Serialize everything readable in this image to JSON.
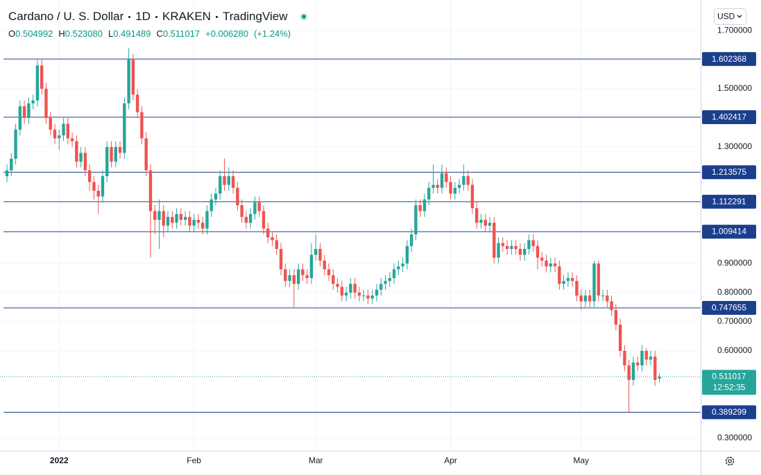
{
  "header": {
    "symbol": "Cardano / U. S. Dollar",
    "interval": "1D",
    "exchange": "KRAKEN",
    "source": "TradingView",
    "currency": "USD"
  },
  "legend": {
    "open_label": "O",
    "open": "0.504992",
    "high_label": "H",
    "high": "0.523080",
    "low_label": "L",
    "low": "0.491489",
    "close_label": "C",
    "close": "0.511017",
    "change": "+0.006280",
    "change_pct": "(+1.24%)"
  },
  "chart_data": {
    "type": "candlestick",
    "categories": [
      null,
      null,
      null,
      null,
      null,
      null,
      null,
      null,
      null,
      null,
      null,
      null,
      "2022",
      null,
      null,
      null,
      null,
      null,
      null,
      null,
      null,
      null,
      null,
      null,
      null,
      null,
      null,
      null,
      null,
      null,
      null,
      null,
      null,
      null,
      null,
      null,
      null,
      null,
      null,
      null,
      null,
      null,
      null,
      "Feb",
      null,
      null,
      null,
      null,
      null,
      null,
      null,
      null,
      null,
      null,
      null,
      null,
      null,
      null,
      null,
      null,
      null,
      null,
      null,
      null,
      null,
      null,
      null,
      null,
      null,
      null,
      null,
      "Mar",
      null,
      null,
      null,
      null,
      null,
      null,
      null,
      null,
      null,
      null,
      null,
      null,
      null,
      null,
      null,
      null,
      null,
      null,
      null,
      null,
      null,
      null,
      null,
      null,
      null,
      null,
      null,
      null,
      null,
      null,
      "Apr",
      null,
      null,
      null,
      null,
      null,
      null,
      null,
      null,
      null,
      null,
      null,
      null,
      null,
      null,
      null,
      null,
      null,
      null,
      null,
      null,
      null,
      null,
      null,
      null,
      null,
      null,
      null,
      null,
      null,
      "May",
      null,
      null,
      null,
      null,
      null,
      null,
      null,
      null,
      null,
      null,
      null,
      null,
      null,
      null,
      null,
      null,
      null,
      null
    ],
    "open": [
      1.2,
      1.22,
      1.26,
      1.36,
      1.44,
      1.4,
      1.45,
      1.46,
      1.58,
      1.5,
      1.4,
      1.36,
      1.33,
      1.34,
      1.38,
      1.33,
      1.32,
      1.25,
      1.28,
      1.22,
      1.18,
      1.15,
      1.13,
      1.2,
      1.3,
      1.25,
      1.3,
      1.28,
      1.45,
      1.6,
      1.48,
      1.42,
      1.33,
      1.22,
      1.08,
      1.05,
      1.08,
      1.03,
      1.06,
      1.04,
      1.07,
      1.05,
      1.06,
      1.03,
      1.05,
      1.04,
      1.02,
      1.08,
      1.12,
      1.14,
      1.2,
      1.17,
      1.2,
      1.16,
      1.1,
      1.06,
      1.04,
      1.07,
      1.11,
      1.08,
      1.02,
      0.99,
      0.98,
      0.95,
      0.88,
      0.84,
      0.86,
      0.83,
      0.88,
      0.86,
      0.85,
      0.93,
      0.95,
      0.91,
      0.88,
      0.86,
      0.83,
      0.82,
      0.79,
      0.8,
      0.83,
      0.8,
      0.79,
      0.79,
      0.78,
      0.79,
      0.81,
      0.83,
      0.84,
      0.85,
      0.88,
      0.89,
      0.9,
      0.96,
      1.0,
      1.1,
      1.08,
      1.12,
      1.16,
      1.17,
      1.16,
      1.21,
      1.18,
      1.14,
      1.16,
      1.17,
      1.2,
      1.17,
      1.09,
      1.04,
      1.05,
      1.03,
      1.04,
      0.92,
      0.97,
      0.96,
      0.95,
      0.96,
      0.95,
      0.93,
      0.95,
      0.98,
      0.96,
      0.92,
      0.91,
      0.89,
      0.9,
      0.89,
      0.83,
      0.84,
      0.85,
      0.84,
      0.79,
      0.77,
      0.79,
      0.77,
      0.9,
      0.79,
      0.79,
      0.77,
      0.74,
      0.69,
      0.6,
      0.55,
      0.5,
      0.56,
      0.55,
      0.6,
      0.57,
      0.58,
      0.504992
    ],
    "high": [
      1.24,
      1.28,
      1.38,
      1.46,
      1.46,
      1.47,
      1.48,
      1.6,
      1.6,
      1.52,
      1.42,
      1.38,
      1.36,
      1.4,
      1.4,
      1.35,
      1.34,
      1.3,
      1.3,
      1.24,
      1.2,
      1.17,
      1.22,
      1.32,
      1.32,
      1.32,
      1.32,
      1.47,
      1.64,
      1.62,
      1.5,
      1.44,
      1.35,
      1.24,
      1.1,
      1.12,
      1.1,
      1.08,
      1.08,
      1.09,
      1.09,
      1.08,
      1.08,
      1.07,
      1.07,
      1.06,
      1.1,
      1.14,
      1.16,
      1.22,
      1.26,
      1.23,
      1.22,
      1.18,
      1.12,
      1.08,
      1.09,
      1.13,
      1.13,
      1.1,
      1.04,
      1.01,
      1.0,
      0.97,
      0.9,
      0.88,
      0.88,
      0.9,
      0.9,
      0.88,
      0.97,
      1.0,
      0.97,
      0.93,
      0.9,
      0.88,
      0.85,
      0.84,
      0.82,
      0.85,
      0.85,
      0.82,
      0.81,
      0.81,
      0.81,
      0.83,
      0.85,
      0.86,
      0.87,
      0.9,
      0.91,
      0.92,
      0.98,
      1.02,
      1.12,
      1.12,
      1.14,
      1.18,
      1.24,
      1.19,
      1.24,
      1.23,
      1.2,
      1.18,
      1.19,
      1.24,
      1.22,
      1.19,
      1.11,
      1.07,
      1.07,
      1.06,
      1.06,
      0.99,
      0.99,
      0.98,
      0.98,
      0.98,
      0.97,
      0.97,
      1.0,
      1.0,
      0.98,
      0.94,
      0.93,
      0.92,
      0.92,
      0.91,
      0.86,
      0.87,
      0.87,
      0.86,
      0.81,
      0.81,
      0.81,
      0.91,
      0.91,
      0.81,
      0.81,
      0.79,
      0.76,
      0.71,
      0.62,
      0.57,
      0.58,
      0.58,
      0.62,
      0.61,
      0.6,
      0.6,
      0.52308
    ],
    "low": [
      1.18,
      1.2,
      1.24,
      1.34,
      1.38,
      1.38,
      1.43,
      1.44,
      1.48,
      1.38,
      1.34,
      1.31,
      1.29,
      1.32,
      1.31,
      1.3,
      1.23,
      1.23,
      1.2,
      1.15,
      1.12,
      1.07,
      1.11,
      1.18,
      1.23,
      1.23,
      1.26,
      1.26,
      1.43,
      1.46,
      1.4,
      1.31,
      1.2,
      0.92,
      1.0,
      0.95,
      0.99,
      1.01,
      1.02,
      1.02,
      1.03,
      1.03,
      1.01,
      1.01,
      1.02,
      1.0,
      1.0,
      1.06,
      1.1,
      1.12,
      1.15,
      1.15,
      1.14,
      1.08,
      1.04,
      1.02,
      1.02,
      1.05,
      1.06,
      1.0,
      0.97,
      0.96,
      0.93,
      0.86,
      0.82,
      0.82,
      0.75,
      0.81,
      0.84,
      0.83,
      0.83,
      0.91,
      0.89,
      0.86,
      0.84,
      0.81,
      0.8,
      0.77,
      0.77,
      0.78,
      0.78,
      0.77,
      0.77,
      0.76,
      0.76,
      0.77,
      0.79,
      0.81,
      0.82,
      0.83,
      0.86,
      0.87,
      0.88,
      0.94,
      0.98,
      1.06,
      1.06,
      1.1,
      1.14,
      1.14,
      1.14,
      1.16,
      1.12,
      1.12,
      1.14,
      1.15,
      1.15,
      1.07,
      1.02,
      1.02,
      1.01,
      1.01,
      0.9,
      0.9,
      0.94,
      0.93,
      0.93,
      0.93,
      0.91,
      0.91,
      0.93,
      0.94,
      0.88,
      0.89,
      0.87,
      0.87,
      0.87,
      0.81,
      0.81,
      0.82,
      0.82,
      0.77,
      0.74,
      0.75,
      0.75,
      0.75,
      0.77,
      0.77,
      0.75,
      0.72,
      0.67,
      0.58,
      0.53,
      0.39,
      0.48,
      0.53,
      0.53,
      0.55,
      0.55,
      0.48,
      0.491489
    ],
    "close": [
      1.22,
      1.26,
      1.36,
      1.44,
      1.4,
      1.45,
      1.46,
      1.58,
      1.5,
      1.4,
      1.36,
      1.33,
      1.34,
      1.38,
      1.33,
      1.32,
      1.25,
      1.28,
      1.22,
      1.18,
      1.15,
      1.13,
      1.2,
      1.3,
      1.25,
      1.3,
      1.28,
      1.45,
      1.6,
      1.48,
      1.42,
      1.33,
      1.22,
      1.08,
      1.05,
      1.08,
      1.03,
      1.06,
      1.04,
      1.07,
      1.05,
      1.06,
      1.03,
      1.05,
      1.04,
      1.02,
      1.08,
      1.12,
      1.14,
      1.2,
      1.17,
      1.2,
      1.16,
      1.1,
      1.06,
      1.04,
      1.07,
      1.11,
      1.08,
      1.02,
      0.99,
      0.98,
      0.95,
      0.88,
      0.84,
      0.86,
      0.83,
      0.88,
      0.86,
      0.85,
      0.93,
      0.95,
      0.91,
      0.88,
      0.86,
      0.83,
      0.82,
      0.79,
      0.8,
      0.83,
      0.8,
      0.79,
      0.79,
      0.78,
      0.79,
      0.81,
      0.83,
      0.84,
      0.85,
      0.88,
      0.89,
      0.9,
      0.96,
      1.0,
      1.1,
      1.08,
      1.12,
      1.16,
      1.17,
      1.16,
      1.21,
      1.18,
      1.14,
      1.16,
      1.17,
      1.2,
      1.17,
      1.09,
      1.04,
      1.05,
      1.03,
      1.04,
      0.92,
      0.97,
      0.96,
      0.95,
      0.96,
      0.95,
      0.93,
      0.95,
      0.98,
      0.96,
      0.92,
      0.91,
      0.89,
      0.9,
      0.89,
      0.83,
      0.84,
      0.85,
      0.84,
      0.79,
      0.77,
      0.79,
      0.77,
      0.9,
      0.79,
      0.79,
      0.77,
      0.74,
      0.69,
      0.6,
      0.55,
      0.5,
      0.56,
      0.55,
      0.6,
      0.57,
      0.58,
      0.5,
      0.511017
    ],
    "up_color": "#26a69a",
    "down_color": "#ef5350",
    "ylim": [
      0.257,
      1.805
    ],
    "yticks": [
      {
        "value": 1.7,
        "label": "1.700000"
      },
      {
        "value": 1.5,
        "label": "1.500000"
      },
      {
        "value": 1.3,
        "label": "1.300000"
      },
      {
        "value": 0.9,
        "label": "0.900000"
      },
      {
        "value": 0.8,
        "label": "0.800000"
      },
      {
        "value": 0.7,
        "label": "0.700000"
      },
      {
        "value": 0.6,
        "label": "0.600000"
      },
      {
        "value": 0.3,
        "label": "0.300000"
      }
    ],
    "grid": true,
    "levels": {
      "values": [
        1.602368,
        1.402417,
        1.213575,
        1.112291,
        1.009414,
        0.747655,
        0.389299
      ],
      "color": "#1c3f8c"
    },
    "last_price": {
      "value": 0.511017,
      "countdown": "12:52:35",
      "color": "#26a69a"
    }
  }
}
